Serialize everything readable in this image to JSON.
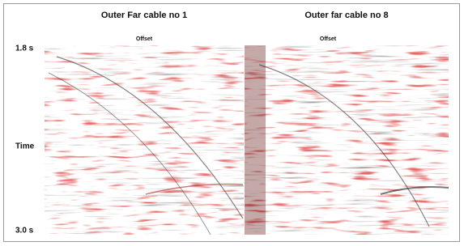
{
  "panels": [
    {
      "title": "Outer Far cable no 1",
      "axis_label": "Offset"
    },
    {
      "title": "Outer far cable no 8",
      "axis_label": "Offset"
    }
  ],
  "time_axis": {
    "top": "1.8 s",
    "label": "Time",
    "bottom": "3.0 s"
  }
}
